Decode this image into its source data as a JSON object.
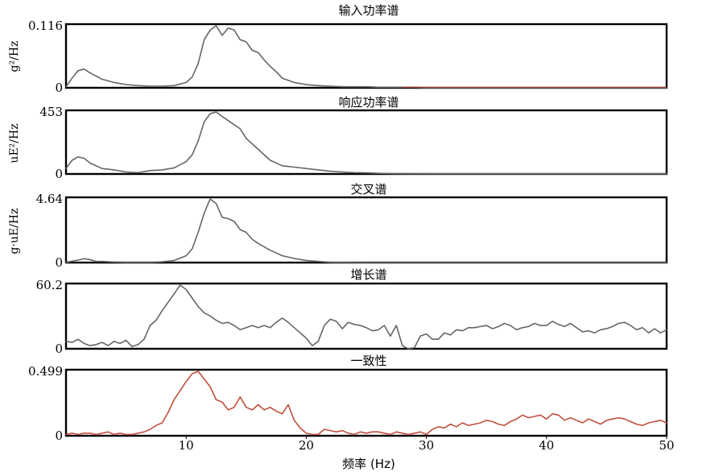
{
  "colors": {
    "gray": "#666666",
    "coherence": "#c0503c",
    "red_tail": "#b04030"
  },
  "chart_data": [
    {
      "type": "line",
      "title": "输入功率谱",
      "ylabel": "g²/Hz",
      "ylim": [
        0,
        0.116
      ],
      "ytick_labels": [
        "0.116",
        "0"
      ],
      "xlim": [
        0,
        50
      ],
      "x": [
        0,
        0.5,
        1,
        1.5,
        2,
        3,
        4,
        5,
        6,
        7,
        8,
        9,
        10,
        10.5,
        11,
        11.5,
        12,
        12.5,
        13,
        13.5,
        14,
        14.5,
        15,
        15.5,
        16,
        16.5,
        17,
        17.5,
        18,
        19,
        20,
        21,
        22,
        23,
        24,
        25,
        26,
        27,
        28,
        29,
        30,
        35,
        40,
        45,
        50
      ],
      "series": [
        {
          "color": "#666666",
          "values": [
            0.002,
            0.018,
            0.032,
            0.035,
            0.028,
            0.016,
            0.01,
            0.006,
            0.004,
            0.003,
            0.003,
            0.004,
            0.01,
            0.02,
            0.045,
            0.09,
            0.108,
            0.116,
            0.098,
            0.112,
            0.108,
            0.09,
            0.086,
            0.07,
            0.066,
            0.052,
            0.04,
            0.03,
            0.018,
            0.01,
            0.006,
            0.004,
            0.003,
            0.002,
            0.002,
            0.002,
            0.001,
            0.001,
            0.001,
            0.001,
            0,
            0,
            0,
            0,
            0
          ]
        }
      ],
      "tail_color": "#b04030",
      "tail_from_x": 28
    },
    {
      "type": "line",
      "title": "响应功率谱",
      "ylabel": "uE²/Hz",
      "ylim": [
        0,
        453
      ],
      "ytick_labels": [
        "453",
        "0"
      ],
      "xlim": [
        0,
        50
      ],
      "x": [
        0,
        0.5,
        1,
        1.5,
        2,
        3,
        4,
        5,
        6,
        7,
        8,
        9,
        10,
        10.5,
        11,
        11.5,
        12,
        12.5,
        13,
        13.5,
        14,
        14.5,
        15,
        15.5,
        16,
        17,
        18,
        19,
        20,
        21,
        22,
        23,
        24,
        25,
        26,
        27,
        28,
        30,
        35,
        40,
        45,
        50
      ],
      "series": [
        {
          "color": "#666666",
          "values": [
            40,
            100,
            125,
            115,
            80,
            40,
            30,
            15,
            10,
            25,
            30,
            45,
            90,
            140,
            240,
            380,
            440,
            453,
            420,
            390,
            360,
            330,
            260,
            220,
            180,
            100,
            60,
            50,
            40,
            30,
            20,
            15,
            10,
            8,
            5,
            3,
            2,
            1,
            1,
            1,
            1,
            1
          ]
        }
      ]
    },
    {
      "type": "line",
      "title": "交叉谱",
      "ylabel": "g·uE/Hz",
      "ylim": [
        0,
        4.64
      ],
      "ytick_labels": [
        "4.64",
        "0"
      ],
      "xlim": [
        0,
        50
      ],
      "x": [
        0,
        0.5,
        1,
        1.5,
        2,
        2.5,
        3,
        4,
        5,
        6,
        7,
        8,
        9,
        10,
        10.5,
        11,
        11.5,
        12,
        12.5,
        13,
        13.5,
        14,
        14.5,
        15,
        15.5,
        16,
        17,
        18,
        19,
        20,
        21,
        22,
        25,
        30,
        35,
        40,
        45,
        50
      ],
      "series": [
        {
          "color": "#666666",
          "values": [
            0.02,
            0.1,
            0.18,
            0.28,
            0.22,
            0.08,
            0.08,
            0.04,
            0.02,
            0.02,
            0.02,
            0.05,
            0.15,
            0.5,
            1.0,
            2.2,
            3.6,
            4.64,
            4.3,
            3.3,
            3.2,
            3.0,
            2.4,
            2.2,
            1.7,
            1.4,
            0.9,
            0.5,
            0.3,
            0.15,
            0.08,
            0.02,
            0,
            0,
            0,
            0,
            0,
            0
          ]
        }
      ]
    },
    {
      "type": "line",
      "title": "增长谱",
      "ylim": [
        0,
        60.2
      ],
      "ytick_labels": [
        "60.2",
        "0"
      ],
      "xlim": [
        0,
        50
      ],
      "x": [
        0,
        0.5,
        1,
        1.5,
        2,
        2.5,
        3,
        3.5,
        4,
        4.5,
        5,
        5.5,
        6,
        6.5,
        7,
        7.5,
        8,
        8.5,
        9,
        9.5,
        10,
        10.5,
        11,
        11.5,
        12,
        12.5,
        13,
        13.5,
        14,
        14.5,
        15,
        15.5,
        16,
        16.5,
        17,
        17.5,
        18,
        18.5,
        19,
        19.5,
        20,
        20.5,
        21,
        21.5,
        22,
        22.5,
        23,
        23.5,
        24,
        24.5,
        25,
        25.5,
        26,
        26.5,
        27,
        27.5,
        28,
        28.5,
        29,
        29.5,
        30,
        30.5,
        31,
        31.5,
        32,
        32.5,
        33,
        33.5,
        34,
        34.5,
        35,
        35.5,
        36,
        36.5,
        37,
        37.5,
        38,
        38.5,
        39,
        39.5,
        40,
        40.5,
        41,
        41.5,
        42,
        42.5,
        43,
        43.5,
        44,
        44.5,
        45,
        45.5,
        46,
        46.5,
        47,
        47.5,
        48,
        48.5,
        49,
        49.5,
        50
      ],
      "series": [
        {
          "color": "#666666",
          "values": [
            7,
            6,
            9,
            5,
            3,
            4,
            6,
            3,
            7,
            5,
            8,
            2,
            4,
            9,
            22,
            27,
            36,
            44,
            52,
            60.2,
            56,
            48,
            40,
            34,
            31,
            27,
            24,
            25,
            22,
            18,
            20,
            22,
            20,
            22,
            20,
            25,
            29,
            25,
            20,
            15,
            10,
            3,
            7,
            22,
            28,
            26,
            19,
            25,
            23,
            22,
            20,
            17,
            18,
            22,
            12,
            22,
            3,
            0,
            1,
            12,
            14,
            9,
            9,
            15,
            13,
            18,
            17,
            20,
            20,
            21,
            22,
            19,
            21,
            24,
            22,
            18,
            20,
            21,
            24,
            22,
            22,
            26,
            23,
            21,
            24,
            20,
            16,
            17,
            15,
            18,
            19,
            21,
            24,
            25,
            22,
            18,
            20,
            15,
            19,
            15,
            18
          ]
        }
      ]
    },
    {
      "type": "line",
      "title": "一致性",
      "ylim": [
        0,
        0.499
      ],
      "ytick_labels": [
        "0.499",
        "0"
      ],
      "xlim": [
        0,
        50
      ],
      "xlabel": "频率 (Hz)",
      "xticks": [
        10,
        20,
        30,
        40,
        50
      ],
      "x": [
        0,
        0.5,
        1,
        1.5,
        2,
        2.5,
        3,
        3.5,
        4,
        4.5,
        5,
        5.5,
        6,
        6.5,
        7,
        7.5,
        8,
        8.5,
        9,
        9.5,
        10,
        10.5,
        11,
        11.5,
        12,
        12.5,
        13,
        13.5,
        14,
        14.5,
        15,
        15.5,
        16,
        16.5,
        17,
        17.5,
        18,
        18.5,
        19,
        19.5,
        20,
        20.5,
        21,
        21.5,
        22,
        22.5,
        23,
        23.5,
        24,
        24.5,
        25,
        25.5,
        26,
        26.5,
        27,
        27.5,
        28,
        28.5,
        29,
        29.5,
        30,
        30.5,
        31,
        31.5,
        32,
        32.5,
        33,
        33.5,
        34,
        34.5,
        35,
        35.5,
        36,
        36.5,
        37,
        37.5,
        38,
        38.5,
        39,
        39.5,
        40,
        40.5,
        41,
        41.5,
        42,
        42.5,
        43,
        43.5,
        44,
        44.5,
        45,
        45.5,
        46,
        46.5,
        47,
        47.5,
        48,
        48.5,
        49,
        49.5,
        50
      ],
      "series": [
        {
          "color": "#c0503c",
          "values": [
            0.01,
            0.02,
            0.01,
            0.02,
            0.02,
            0.01,
            0.02,
            0.03,
            0.01,
            0.02,
            0.01,
            0.01,
            0.02,
            0.03,
            0.05,
            0.08,
            0.1,
            0.18,
            0.28,
            0.35,
            0.42,
            0.48,
            0.499,
            0.44,
            0.38,
            0.28,
            0.26,
            0.2,
            0.22,
            0.3,
            0.22,
            0.2,
            0.24,
            0.2,
            0.22,
            0.19,
            0.17,
            0.24,
            0.12,
            0.06,
            0.02,
            0.01,
            0.01,
            0.05,
            0.04,
            0.03,
            0.04,
            0.02,
            0.01,
            0.03,
            0.02,
            0.03,
            0.03,
            0.02,
            0.01,
            0.03,
            0.02,
            0.01,
            0.02,
            0.03,
            0.01,
            0.05,
            0.07,
            0.06,
            0.09,
            0.07,
            0.1,
            0.08,
            0.09,
            0.1,
            0.12,
            0.11,
            0.09,
            0.08,
            0.11,
            0.13,
            0.16,
            0.14,
            0.15,
            0.16,
            0.13,
            0.17,
            0.16,
            0.12,
            0.14,
            0.12,
            0.1,
            0.13,
            0.11,
            0.09,
            0.12,
            0.13,
            0.14,
            0.13,
            0.11,
            0.09,
            0.08,
            0.1,
            0.11,
            0.12,
            0.1
          ]
        }
      ]
    }
  ]
}
